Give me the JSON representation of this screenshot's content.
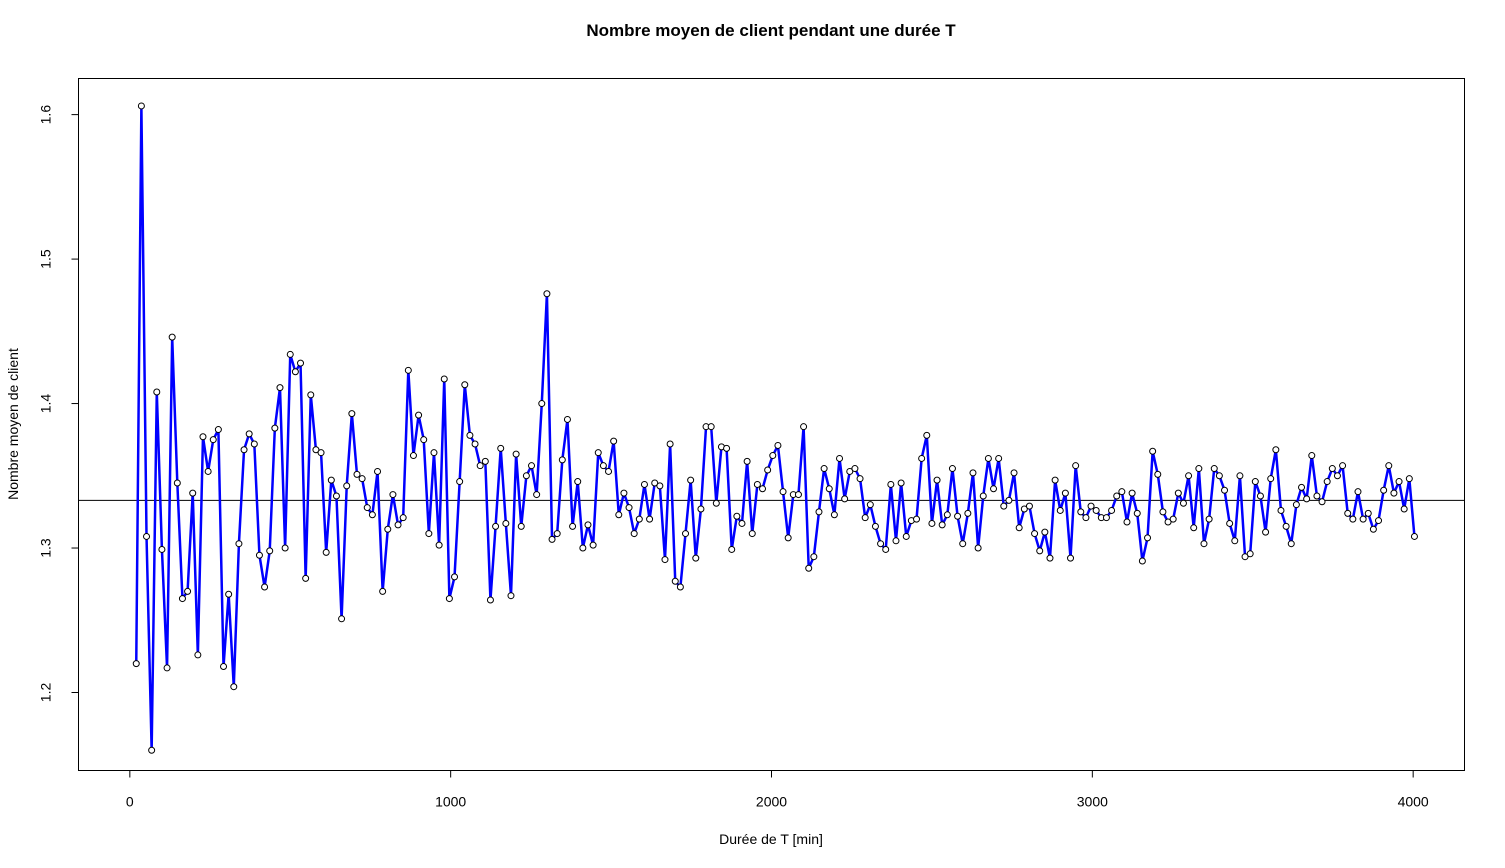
{
  "chart_data": {
    "type": "line",
    "title": "Nombre moyen de client pendant une durée T",
    "xlabel": "Durée de T [min]",
    "ylabel": "Nombre moyen de client",
    "xlim": [
      -160,
      4160
    ],
    "ylim": [
      1.146,
      1.625
    ],
    "x_ticks": [
      0,
      1000,
      2000,
      3000,
      4000
    ],
    "x_tick_labels": [
      "0",
      "1000",
      "2000",
      "3000",
      "4000"
    ],
    "y_ticks": [
      1.2,
      1.3,
      1.4,
      1.5,
      1.6
    ],
    "y_tick_labels": [
      "1.2",
      "1.3",
      "1.4",
      "1.5",
      "1.6"
    ],
    "grid": false,
    "legend": "none",
    "reference_line": {
      "y": 1.333,
      "color": "#000000"
    },
    "series": [
      {
        "color": "#0000ff",
        "marker": "open-circle",
        "x_start": 20,
        "x_step": 16,
        "values": [
          1.22,
          1.606,
          1.308,
          1.16,
          1.408,
          1.299,
          1.217,
          1.446,
          1.345,
          1.265,
          1.27,
          1.338,
          1.226,
          1.377,
          1.353,
          1.375,
          1.382,
          1.218,
          1.268,
          1.204,
          1.303,
          1.368,
          1.379,
          1.372,
          1.295,
          1.273,
          1.298,
          1.383,
          1.411,
          1.3,
          1.434,
          1.422,
          1.428,
          1.279,
          1.406,
          1.368,
          1.366,
          1.297,
          1.347,
          1.336,
          1.251,
          1.343,
          1.393,
          1.351,
          1.348,
          1.328,
          1.323,
          1.353,
          1.27,
          1.313,
          1.337,
          1.316,
          1.321,
          1.423,
          1.364,
          1.392,
          1.375,
          1.31,
          1.366,
          1.302,
          1.417,
          1.265,
          1.28,
          1.346,
          1.413,
          1.378,
          1.372,
          1.357,
          1.36,
          1.264,
          1.315,
          1.369,
          1.317,
          1.267,
          1.365,
          1.315,
          1.35,
          1.357,
          1.337,
          1.4,
          1.476,
          1.306,
          1.31,
          1.361,
          1.389,
          1.315,
          1.346,
          1.3,
          1.316,
          1.302,
          1.366,
          1.357,
          1.353,
          1.374,
          1.323,
          1.338,
          1.328,
          1.31,
          1.32,
          1.344,
          1.32,
          1.345,
          1.343,
          1.292,
          1.372,
          1.277,
          1.273,
          1.31,
          1.347,
          1.293,
          1.327,
          1.384,
          1.384,
          1.331,
          1.37,
          1.369,
          1.299,
          1.322,
          1.317,
          1.36,
          1.31,
          1.344,
          1.341,
          1.354,
          1.364,
          1.371,
          1.339,
          1.307,
          1.337,
          1.337,
          1.384,
          1.286,
          1.294,
          1.325,
          1.355,
          1.341,
          1.323,
          1.362,
          1.334,
          1.353,
          1.355,
          1.348,
          1.321,
          1.33,
          1.315,
          1.303,
          1.299,
          1.344,
          1.305,
          1.345,
          1.308,
          1.319,
          1.32,
          1.362,
          1.378,
          1.317,
          1.347,
          1.316,
          1.323,
          1.355,
          1.322,
          1.303,
          1.324,
          1.352,
          1.3,
          1.336,
          1.362,
          1.341,
          1.362,
          1.329,
          1.333,
          1.352,
          1.314,
          1.327,
          1.329,
          1.31,
          1.298,
          1.311,
          1.293,
          1.347,
          1.326,
          1.338,
          1.293,
          1.357,
          1.325,
          1.321,
          1.329,
          1.326,
          1.321,
          1.321,
          1.326,
          1.336,
          1.339,
          1.318,
          1.338,
          1.324,
          1.291,
          1.307,
          1.367,
          1.351,
          1.325,
          1.318,
          1.32,
          1.338,
          1.331,
          1.35,
          1.314,
          1.355,
          1.303,
          1.32,
          1.355,
          1.35,
          1.34,
          1.317,
          1.305,
          1.35,
          1.294,
          1.296,
          1.346,
          1.336,
          1.311,
          1.348,
          1.368,
          1.326,
          1.315,
          1.303,
          1.33,
          1.342,
          1.334,
          1.364,
          1.336,
          1.332,
          1.346,
          1.355,
          1.35,
          1.357,
          1.324,
          1.32,
          1.339,
          1.32,
          1.324,
          1.313,
          1.319,
          1.34,
          1.357,
          1.338,
          1.346,
          1.327,
          1.348,
          1.308
        ]
      }
    ]
  }
}
